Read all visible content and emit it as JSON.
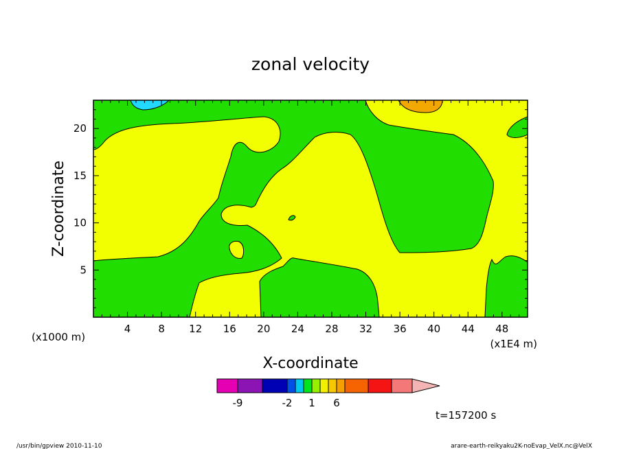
{
  "chart_data": {
    "type": "heatmap",
    "title": "zonal velocity",
    "xlabel": "X-coordinate",
    "ylabel": "Z-coordinate",
    "x_unit_left": "(x1000 m)",
    "x_unit_right": "(x1E4 m)",
    "xlim": [
      0,
      51
    ],
    "ylim": [
      0,
      23
    ],
    "x_ticks": [
      "4",
      "8",
      "12",
      "16",
      "20",
      "24",
      "28",
      "32",
      "36",
      "40",
      "44",
      "48"
    ],
    "x_tick_values": [
      4,
      8,
      12,
      16,
      20,
      24,
      28,
      32,
      36,
      40,
      44,
      48
    ],
    "y_ticks": [
      "5",
      "10",
      "15",
      "20"
    ],
    "y_tick_values": [
      5,
      10,
      15,
      20
    ],
    "colors": {
      "background": "#f2ff00",
      "green": "#22dd00",
      "cyan": "#22d8ff",
      "orange": "#f2a800"
    },
    "colorbar": {
      "colors": [
        "#e600b4",
        "#8c14b4",
        "#0000b4",
        "#0050e6",
        "#00c8f0",
        "#00e61e",
        "#96f000",
        "#f0f000",
        "#f5c800",
        "#f5a000",
        "#f56400",
        "#f51414",
        "#f57878",
        "#f5b4b4"
      ],
      "labels": [
        "-9",
        "-2",
        "1",
        "6"
      ]
    },
    "time_label": "t=157200 s",
    "footer_left": "/usr/bin/gpview   2010-11-10",
    "footer_right": "arare-earth-reikyaku2K-noEvap_VelX.nc@VelX"
  }
}
